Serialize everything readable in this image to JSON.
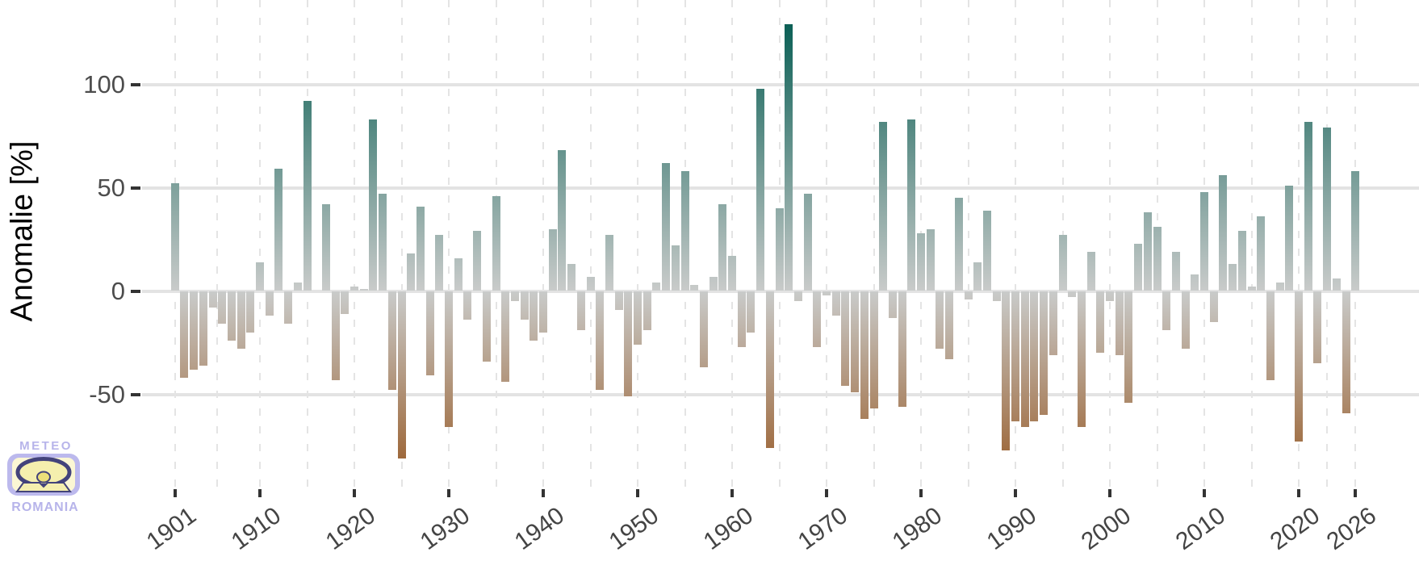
{
  "y_axis": {
    "title": "Anomalie [%]",
    "tick_labels": [
      "100",
      "50",
      "0",
      "-50"
    ],
    "tick_values": [
      100,
      50,
      0,
      -50
    ]
  },
  "x_axis": {
    "tick_labels": [
      "1901",
      "1910",
      "1920",
      "1930",
      "1940",
      "1950",
      "1960",
      "1970",
      "1980",
      "1990",
      "2000",
      "2010",
      "2020",
      "2026"
    ],
    "tick_years": [
      1901,
      1910,
      1920,
      1930,
      1940,
      1950,
      1960,
      1970,
      1980,
      1990,
      2000,
      2010,
      2020,
      2026
    ]
  },
  "logo": {
    "line1": "METEO",
    "line2": "ROMANIA",
    "lavender": "#b7b4ea",
    "pale_yellow": "#f8f3bc",
    "dark_outline": "#43437b"
  },
  "chart_data": {
    "type": "bar",
    "title": "",
    "ylabel": "Anomalie [%]",
    "xlabel": "",
    "ylim": [
      -95,
      141
    ],
    "yticks": [
      100,
      50,
      0,
      -50
    ],
    "xticks": [
      1901,
      1910,
      1920,
      1930,
      1940,
      1950,
      1960,
      1970,
      1980,
      1990,
      2000,
      2010,
      2020,
      2026
    ],
    "grid": "horizontal solid lines at yticks; vertical dashed lines at decade ticks and midpoints",
    "legend": "none",
    "colors": {
      "positive_max": "#0a5f55",
      "near_zero": "#c9cbca",
      "negative_max": "#9e693c",
      "gridline": "#e3e3e3",
      "axis_text": "#4d4d4d"
    },
    "x": [
      1901,
      1902,
      1903,
      1904,
      1905,
      1906,
      1907,
      1908,
      1909,
      1910,
      1911,
      1912,
      1913,
      1914,
      1915,
      1916,
      1917,
      1918,
      1919,
      1920,
      1921,
      1922,
      1923,
      1924,
      1925,
      1926,
      1927,
      1928,
      1929,
      1930,
      1931,
      1932,
      1933,
      1934,
      1935,
      1936,
      1937,
      1938,
      1939,
      1940,
      1941,
      1942,
      1943,
      1944,
      1945,
      1946,
      1947,
      1948,
      1949,
      1950,
      1951,
      1952,
      1953,
      1954,
      1955,
      1956,
      1957,
      1958,
      1959,
      1960,
      1961,
      1962,
      1963,
      1964,
      1965,
      1966,
      1967,
      1968,
      1969,
      1970,
      1971,
      1972,
      1973,
      1974,
      1975,
      1976,
      1977,
      1978,
      1979,
      1980,
      1981,
      1982,
      1983,
      1984,
      1985,
      1986,
      1987,
      1988,
      1989,
      1990,
      1991,
      1992,
      1993,
      1994,
      1995,
      1996,
      1997,
      1998,
      1999,
      2000,
      2001,
      2002,
      2003,
      2004,
      2005,
      2006,
      2007,
      2008,
      2009,
      2010,
      2011,
      2012,
      2013,
      2014,
      2015,
      2016,
      2017,
      2018,
      2019,
      2020,
      2021,
      2022,
      2023,
      2024,
      2025,
      2026
    ],
    "values": [
      52,
      -42,
      -38,
      -36,
      -8,
      -16,
      -24,
      -28,
      -20,
      14,
      -12,
      59,
      -16,
      4,
      92,
      0,
      42,
      -43,
      -11,
      2,
      1,
      83,
      47,
      -48,
      -81,
      18,
      41,
      -41,
      27,
      -66,
      16,
      -14,
      29,
      -34,
      46,
      -44,
      -5,
      -14,
      -24,
      -20,
      30,
      68,
      13,
      -19,
      7,
      -48,
      27,
      -9,
      -51,
      -26,
      -19,
      4,
      62,
      22,
      58,
      3,
      -37,
      7,
      42,
      17,
      -27,
      -20,
      98,
      -76,
      40,
      129,
      -5,
      47,
      -27,
      -2,
      -12,
      -46,
      -49,
      -62,
      -57,
      82,
      -13,
      -56,
      83,
      28,
      30,
      -28,
      -33,
      45,
      -4,
      14,
      39,
      -5,
      -77,
      -63,
      -66,
      -63,
      -60,
      -31,
      27,
      -3,
      -66,
      19,
      -30,
      -5,
      -31,
      -54,
      23,
      38,
      31,
      -19,
      19,
      -28,
      8,
      48,
      -15,
      56,
      13,
      29,
      2,
      36,
      -43,
      4,
      51,
      -73,
      82,
      -35,
      79,
      6,
      -59,
      58
    ]
  }
}
